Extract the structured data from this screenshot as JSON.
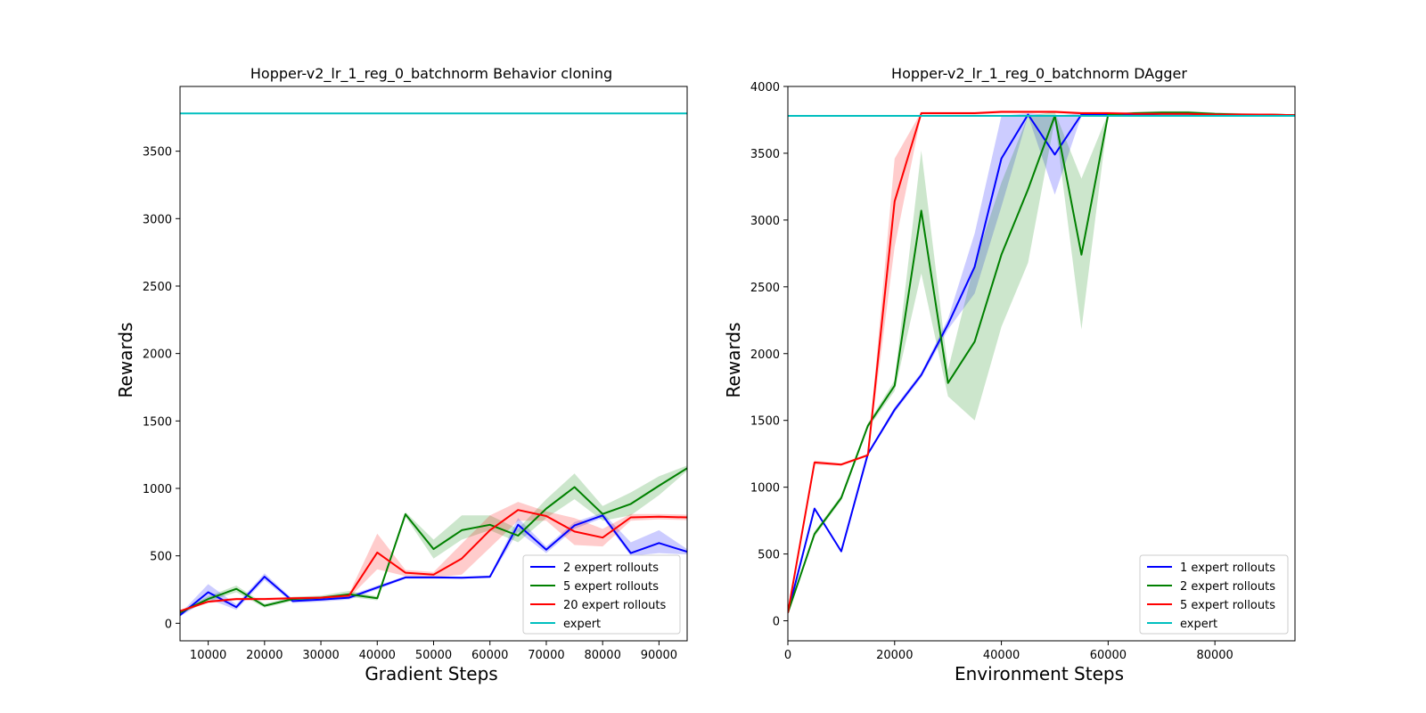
{
  "chart_data": [
    {
      "type": "line",
      "title": "Hopper-v2_lr_1_reg_0_batchnorm Behavior cloning",
      "xlabel": "Gradient Steps",
      "ylabel": "Rewards",
      "xlim": [
        5000,
        95000
      ],
      "ylim": [
        -130,
        3980
      ],
      "xticks": [
        10000,
        20000,
        30000,
        40000,
        50000,
        60000,
        70000,
        80000,
        90000
      ],
      "yticks": [
        0,
        500,
        1000,
        1500,
        2000,
        2500,
        3000,
        3500
      ],
      "grid": false,
      "legend_position": "lower-right",
      "series": [
        {
          "name": "2 expert rollouts",
          "color": "#0000ff",
          "x": [
            5000,
            10000,
            15000,
            20000,
            25000,
            30000,
            35000,
            40000,
            45000,
            50000,
            55000,
            60000,
            65000,
            70000,
            75000,
            80000,
            85000,
            90000,
            95000
          ],
          "y": [
            60,
            230,
            120,
            345,
            165,
            175,
            190,
            265,
            340,
            340,
            338,
            345,
            730,
            545,
            725,
            800,
            520,
            595,
            530
          ],
          "y_low": [
            50,
            180,
            100,
            320,
            150,
            160,
            175,
            250,
            330,
            330,
            330,
            335,
            680,
            520,
            700,
            780,
            500,
            520,
            510
          ],
          "y_high": [
            70,
            290,
            140,
            370,
            180,
            190,
            205,
            280,
            350,
            350,
            346,
            355,
            780,
            570,
            750,
            820,
            600,
            690,
            550
          ]
        },
        {
          "name": "5 expert rollouts",
          "color": "#008000",
          "x": [
            5000,
            10000,
            15000,
            20000,
            25000,
            30000,
            35000,
            40000,
            45000,
            50000,
            55000,
            60000,
            65000,
            70000,
            75000,
            80000,
            85000,
            90000,
            95000
          ],
          "y": [
            80,
            180,
            255,
            130,
            180,
            190,
            215,
            185,
            808,
            550,
            690,
            730,
            650,
            850,
            1010,
            810,
            885,
            1020,
            1150
          ],
          "y_low": [
            70,
            160,
            230,
            115,
            165,
            175,
            195,
            170,
            790,
            480,
            620,
            690,
            600,
            780,
            920,
            760,
            800,
            950,
            1130
          ],
          "y_high": [
            90,
            200,
            280,
            145,
            195,
            205,
            240,
            200,
            825,
            620,
            800,
            800,
            700,
            920,
            1110,
            870,
            970,
            1090,
            1170
          ]
        },
        {
          "name": "20 expert rollouts",
          "color": "#ff0000",
          "x": [
            5000,
            10000,
            15000,
            20000,
            25000,
            30000,
            35000,
            40000,
            45000,
            50000,
            55000,
            60000,
            65000,
            70000,
            75000,
            80000,
            85000,
            90000,
            95000
          ],
          "y": [
            90,
            160,
            180,
            180,
            185,
            190,
            205,
            525,
            375,
            360,
            480,
            690,
            840,
            795,
            680,
            635,
            785,
            790,
            785
          ],
          "y_low": [
            80,
            150,
            170,
            170,
            175,
            180,
            190,
            400,
            350,
            340,
            360,
            560,
            760,
            760,
            580,
            570,
            760,
            770,
            765
          ],
          "y_high": [
            100,
            170,
            190,
            190,
            195,
            200,
            220,
            665,
            395,
            380,
            590,
            800,
            900,
            830,
            780,
            700,
            810,
            810,
            805
          ]
        },
        {
          "name": "expert",
          "color": "#00bfbf",
          "x": [
            5000,
            95000
          ],
          "y": [
            3780,
            3780
          ]
        }
      ]
    },
    {
      "type": "line",
      "title": "Hopper-v2_lr_1_reg_0_batchnorm DAgger",
      "xlabel": "Environment Steps",
      "ylabel": "Rewards",
      "xlim": [
        0,
        95000
      ],
      "ylim": [
        -150,
        4000
      ],
      "xticks": [
        0,
        20000,
        40000,
        60000,
        80000
      ],
      "yticks": [
        0,
        500,
        1000,
        1500,
        2000,
        2500,
        3000,
        3500,
        4000
      ],
      "grid": false,
      "legend_position": "lower-right",
      "series": [
        {
          "name": "1 expert rollouts",
          "color": "#0000ff",
          "x": [
            0,
            5000,
            10000,
            15000,
            20000,
            25000,
            30000,
            35000,
            40000,
            45000,
            50000,
            55000,
            60000,
            65000,
            70000,
            75000,
            80000,
            85000,
            90000,
            95000
          ],
          "y": [
            60,
            840,
            520,
            1250,
            1580,
            1840,
            2220,
            2650,
            3460,
            3790,
            3490,
            3790,
            3790,
            3790,
            3795,
            3795,
            3790,
            3785,
            3785,
            3785
          ],
          "y_low": [
            50,
            830,
            510,
            1240,
            1560,
            1820,
            2180,
            2450,
            3100,
            3780,
            3190,
            3780,
            3780,
            3785,
            3790,
            3790,
            3785,
            3780,
            3780,
            3780
          ],
          "y_high": [
            70,
            850,
            530,
            1260,
            1600,
            1860,
            2260,
            2900,
            3780,
            3800,
            3780,
            3800,
            3800,
            3800,
            3800,
            3800,
            3795,
            3790,
            3790,
            3790
          ]
        },
        {
          "name": "2 expert rollouts",
          "color": "#008000",
          "x": [
            0,
            5000,
            10000,
            15000,
            20000,
            25000,
            30000,
            35000,
            40000,
            45000,
            50000,
            55000,
            60000,
            65000,
            70000,
            75000,
            80000,
            85000,
            90000,
            95000
          ],
          "y": [
            60,
            650,
            920,
            1460,
            1760,
            3070,
            1780,
            2090,
            2740,
            3230,
            3780,
            2740,
            3790,
            3800,
            3805,
            3805,
            3795,
            3790,
            3790,
            3785
          ],
          "y_low": [
            50,
            630,
            900,
            1440,
            1720,
            2600,
            1680,
            1500,
            2200,
            2680,
            3750,
            2180,
            3780,
            3790,
            3795,
            3795,
            3785,
            3780,
            3780,
            3780
          ],
          "y_high": [
            70,
            670,
            940,
            1480,
            1800,
            3520,
            1880,
            2680,
            3280,
            3780,
            3810,
            3310,
            3800,
            3810,
            3815,
            3815,
            3805,
            3800,
            3795,
            3790
          ]
        },
        {
          "name": "5 expert rollouts",
          "color": "#ff0000",
          "x": [
            0,
            5000,
            10000,
            15000,
            20000,
            25000,
            30000,
            35000,
            40000,
            45000,
            50000,
            55000,
            60000,
            65000,
            70000,
            75000,
            80000,
            85000,
            90000,
            95000
          ],
          "y": [
            60,
            1185,
            1170,
            1240,
            3140,
            3800,
            3800,
            3800,
            3810,
            3810,
            3810,
            3800,
            3800,
            3795,
            3795,
            3795,
            3790,
            3790,
            3790,
            3785
          ],
          "y_low": [
            50,
            1170,
            1160,
            1230,
            2800,
            3790,
            3790,
            3790,
            3800,
            3800,
            3800,
            3790,
            3790,
            3785,
            3785,
            3785,
            3780,
            3780,
            3780,
            3780
          ],
          "y_high": [
            70,
            1200,
            1180,
            1250,
            3460,
            3810,
            3810,
            3810,
            3820,
            3820,
            3820,
            3810,
            3810,
            3805,
            3805,
            3805,
            3800,
            3800,
            3795,
            3790
          ]
        },
        {
          "name": "expert",
          "color": "#00bfbf",
          "x": [
            0,
            95000
          ],
          "y": [
            3780,
            3780
          ]
        }
      ]
    }
  ]
}
